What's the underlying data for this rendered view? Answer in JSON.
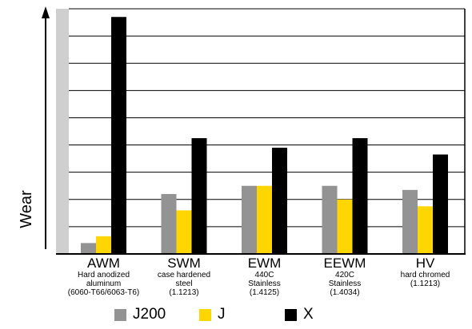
{
  "chart_data": {
    "type": "bar",
    "title": "",
    "xlabel": "",
    "ylabel": "Wear",
    "ylim": [
      0,
      9
    ],
    "grid": true,
    "legend_position": "bottom",
    "categories": [
      "AWM",
      "SWM",
      "EWM",
      "EEWM",
      "HV"
    ],
    "category_descriptions": [
      "Hard anodized\naluminum\n(6060-T66/6063-T6)",
      "case hardened\nsteel\n(1.1213)",
      "440C\nStainless\n(1.4125)",
      "420C\nStainless\n(1.4034)",
      "hard chromed\n(1.1213)"
    ],
    "series": [
      {
        "name": "J200",
        "color": "#939393",
        "values": [
          0.4,
          2.2,
          2.5,
          2.5,
          2.35
        ]
      },
      {
        "name": "J",
        "color": "#ffd600",
        "values": [
          0.65,
          1.6,
          2.5,
          2.0,
          1.75
        ]
      },
      {
        "name": "X",
        "color": "#000000",
        "values": [
          8.7,
          4.25,
          3.9,
          4.25,
          3.65
        ]
      }
    ]
  }
}
